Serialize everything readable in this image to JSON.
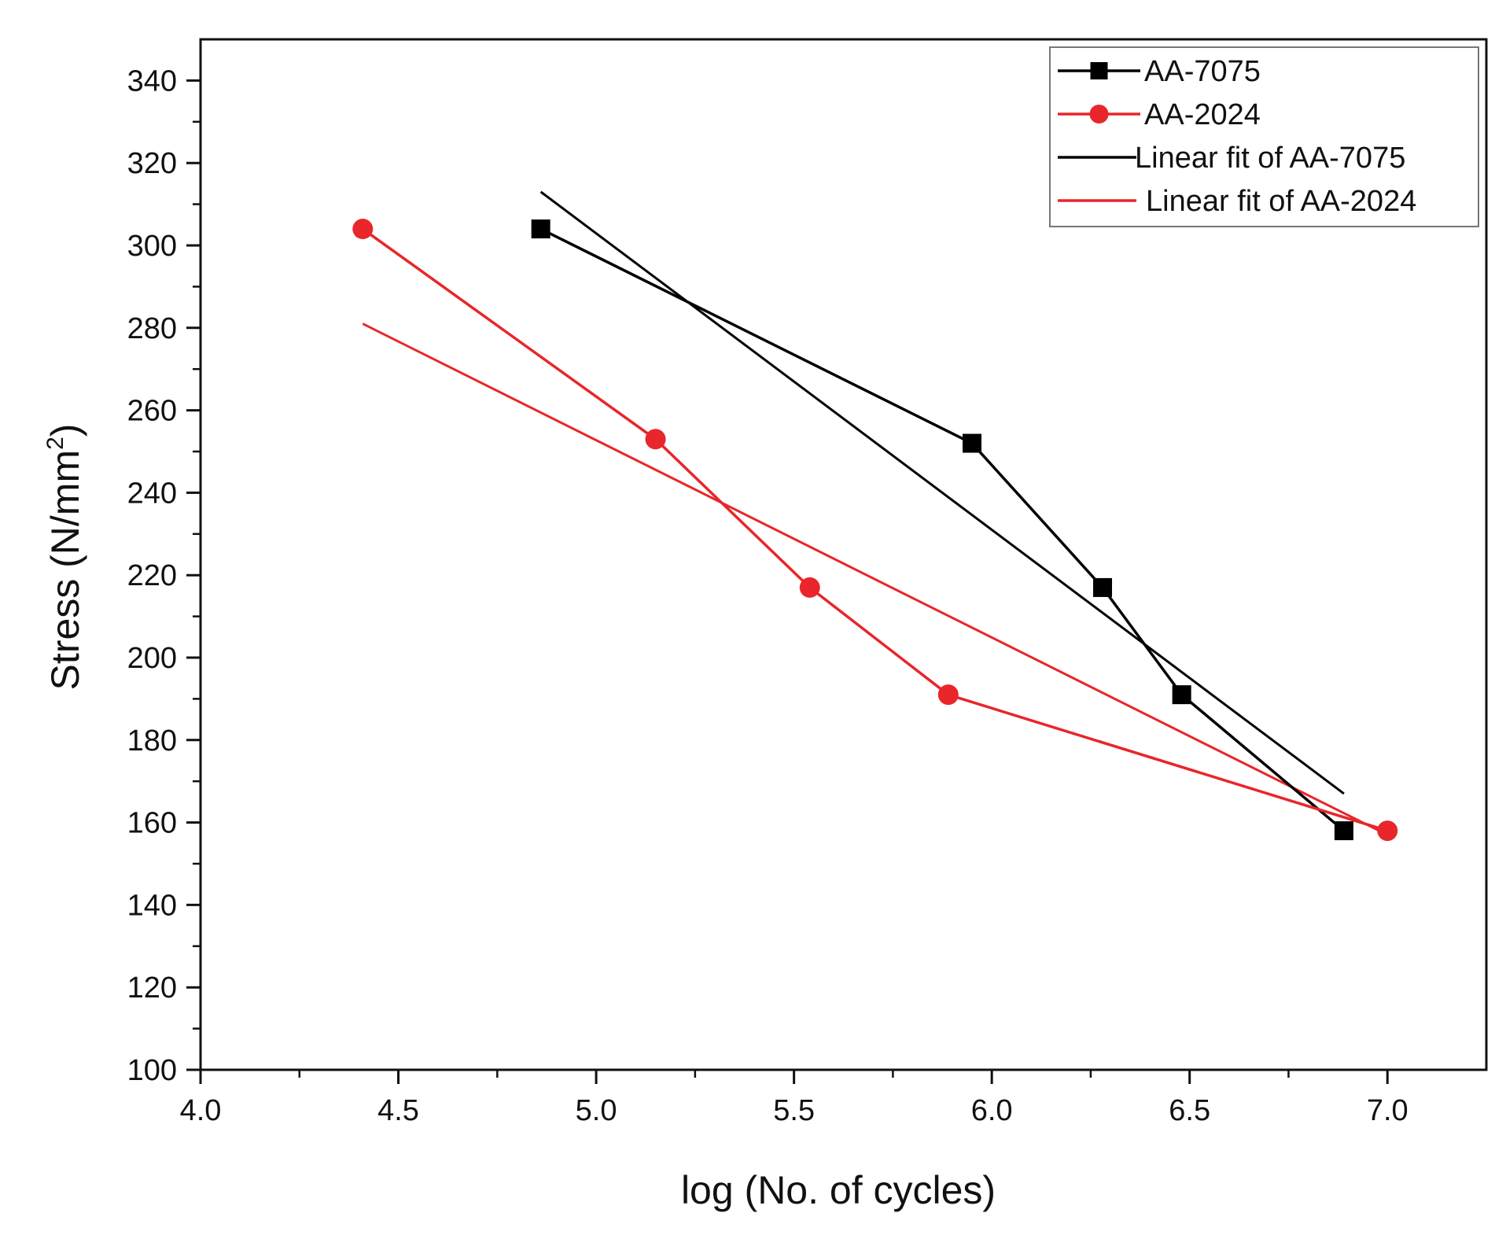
{
  "chart_data": {
    "type": "line",
    "title": "",
    "xlabel": "log (No. of cycles)",
    "ylabel": "Stress (N/mm",
    "ylabel_sup": "2",
    "ylabel_close": ")",
    "xlim": [
      4.0,
      7.25
    ],
    "ylim": [
      100,
      350
    ],
    "xticks": [
      4.0,
      4.5,
      5.0,
      5.5,
      6.0,
      6.5,
      7.0
    ],
    "xtick_labels": [
      "4.0",
      "4.5",
      "5.0",
      "5.5",
      "6.0",
      "6.5",
      "7.0"
    ],
    "yticks": [
      100,
      120,
      140,
      160,
      180,
      200,
      220,
      240,
      260,
      280,
      300,
      320,
      340
    ],
    "ytick_labels": [
      "100",
      "120",
      "140",
      "160",
      "180",
      "200",
      "220",
      "240",
      "260",
      "280",
      "300",
      "320",
      "340"
    ],
    "grid": false,
    "legend_position": "top-right",
    "series": [
      {
        "name": "AA-7075",
        "color": "#000000",
        "marker": "square",
        "x": [
          4.86,
          5.95,
          6.28,
          6.48,
          6.89
        ],
        "y": [
          304,
          252,
          217,
          191,
          158
        ]
      },
      {
        "name": "AA-2024",
        "color": "#e8262b",
        "marker": "circle",
        "x": [
          4.41,
          5.15,
          5.54,
          5.89,
          7.0
        ],
        "y": [
          304,
          253,
          217,
          191,
          158
        ]
      }
    ],
    "fits": [
      {
        "name": "Linear fit of AA-7075",
        "color": "#000000",
        "x": [
          4.86,
          6.89
        ],
        "y": [
          313,
          167
        ]
      },
      {
        "name": "Linear fit of AA-2024",
        "color": "#e8262b",
        "x": [
          4.41,
          7.0
        ],
        "y": [
          281,
          157
        ]
      }
    ]
  }
}
